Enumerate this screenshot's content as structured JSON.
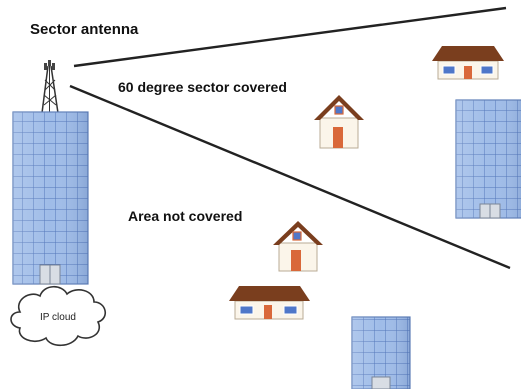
{
  "labels": {
    "sector_antenna": "Sector antenna",
    "sector_covered": "60 degree sector covered",
    "area_not_covered": "Area not covered",
    "ip_cloud": "IP cloud"
  },
  "colors": {
    "background": "#ffffff",
    "building_face": "#9fbce8",
    "building_window_line": "#4f73b8",
    "building_outline": "#5f7fb8",
    "roof_brown": "#7a3e1e",
    "house_wall": "#fbf5ea",
    "door_orange": "#d9683a",
    "window_blue": "#4f77c9",
    "sector_line": "#222222"
  },
  "icons": {
    "antenna": "antenna-tower-icon",
    "building": "office-building-icon",
    "house": "house-icon",
    "cloud": "cloud-icon"
  }
}
